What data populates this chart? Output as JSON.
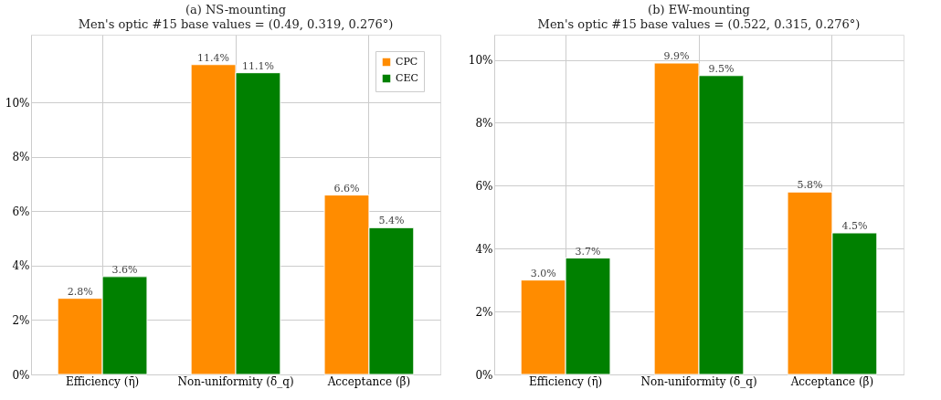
{
  "chart_data": [
    {
      "type": "bar",
      "title": "(a) NS-mounting",
      "subtitle": "Men's optic #15 base values = (0.49, 0.319, 0.276°)",
      "categories": [
        "Efficiency (η̄)",
        "Non-uniformity (δ̄_q)",
        "Acceptance (β̄)"
      ],
      "series": [
        {
          "name": "CPC",
          "color": "#ff8c00",
          "values": [
            2.8,
            11.4,
            6.6
          ],
          "value_labels": [
            "2.8%",
            "11.4%",
            "6.6%"
          ]
        },
        {
          "name": "CEC",
          "color": "#008000",
          "values": [
            3.6,
            11.1,
            5.4
          ],
          "value_labels": [
            "3.6%",
            "11.1%",
            "5.4%"
          ]
        }
      ],
      "ylim": [
        0,
        12.5
      ],
      "yticks": [
        {
          "value": 0,
          "label": "0%"
        },
        {
          "value": 2,
          "label": "2%"
        },
        {
          "value": 4,
          "label": "4%"
        },
        {
          "value": 6,
          "label": "6%"
        },
        {
          "value": 8,
          "label": "8%"
        },
        {
          "value": 10,
          "label": "10%"
        }
      ],
      "grid": true,
      "legend": "top right"
    },
    {
      "type": "bar",
      "title": "(b) EW-mounting",
      "subtitle": "Men's optic #15 base values = (0.522, 0.315, 0.276°)",
      "categories": [
        "Efficiency (η̄)",
        "Non-uniformity (δ̄_q)",
        "Acceptance (β̄)"
      ],
      "series": [
        {
          "name": "CPC",
          "color": "#ff8c00",
          "values": [
            3.0,
            9.9,
            5.8
          ],
          "value_labels": [
            "3.0%",
            "9.9%",
            "5.8%"
          ]
        },
        {
          "name": "CEC",
          "color": "#008000",
          "values": [
            3.7,
            9.5,
            4.5
          ],
          "value_labels": [
            "3.7%",
            "9.5%",
            "4.5%"
          ]
        }
      ],
      "ylim": [
        0,
        10.8
      ],
      "yticks": [
        {
          "value": 0,
          "label": "0%"
        },
        {
          "value": 2,
          "label": "2%"
        },
        {
          "value": 4,
          "label": "4%"
        },
        {
          "value": 6,
          "label": "6%"
        },
        {
          "value": 8,
          "label": "8%"
        },
        {
          "value": 10,
          "label": "10%"
        }
      ],
      "grid": true,
      "legend": false
    }
  ]
}
